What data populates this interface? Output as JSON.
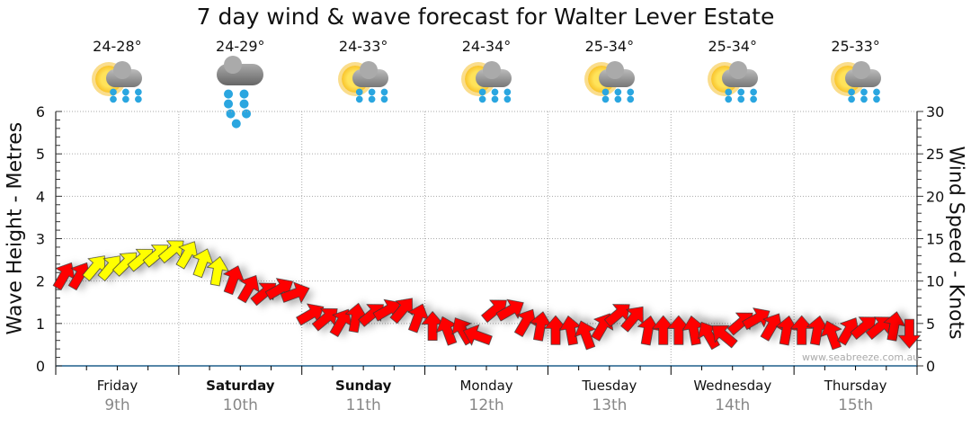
{
  "title": "7 day wind & wave forecast for Walter Lever Estate",
  "watermark": "www.seabreeze.com.au",
  "forecasts": [
    {
      "temp": "24-28°",
      "icon": "sun-cloud-rain-icon"
    },
    {
      "temp": "24-29°",
      "icon": "heavy-rain-cloud-icon"
    },
    {
      "temp": "24-33°",
      "icon": "sun-cloud-rain-icon"
    },
    {
      "temp": "24-34°",
      "icon": "sun-cloud-rain-icon"
    },
    {
      "temp": "25-34°",
      "icon": "sun-cloud-rain-icon"
    },
    {
      "temp": "25-34°",
      "icon": "sun-cloud-rain-icon"
    },
    {
      "temp": "25-33°",
      "icon": "sun-cloud-rain-icon"
    }
  ],
  "days": [
    {
      "name": "Friday",
      "date": "9th",
      "bold": false
    },
    {
      "name": "Saturday",
      "date": "10th",
      "bold": true
    },
    {
      "name": "Sunday",
      "date": "11th",
      "bold": true
    },
    {
      "name": "Monday",
      "date": "12th",
      "bold": false
    },
    {
      "name": "Tuesday",
      "date": "13th",
      "bold": false
    },
    {
      "name": "Wednesday",
      "date": "14th",
      "bold": false
    },
    {
      "name": "Thursday",
      "date": "15th",
      "bold": false
    }
  ],
  "chart_data": {
    "type": "line",
    "title": "7 day wind & wave forecast for Walter Lever Estate",
    "ylabel": "Wave Height - Metres",
    "y2label": "Wind Speed - Knots",
    "ylim": [
      0,
      6
    ],
    "y2lim": [
      0,
      30
    ],
    "yticks": [
      "0",
      "1",
      "2",
      "3",
      "4",
      "5",
      "6"
    ],
    "y2ticks": [
      "0",
      "5",
      "10",
      "15",
      "20",
      "25",
      "30"
    ],
    "grid": true,
    "colors": {
      "strong": "#ff0000",
      "moderate": "#ffff00",
      "axis": "#1f5f8b"
    },
    "x_hours_step": 3,
    "values": [
      2.1,
      2.1,
      2.3,
      2.3,
      2.4,
      2.5,
      2.6,
      2.7,
      2.6,
      2.4,
      2.2,
      2.0,
      1.8,
      1.7,
      1.8,
      1.7,
      1.2,
      1.1,
      1.0,
      1.1,
      1.2,
      1.3,
      1.3,
      1.1,
      0.9,
      0.8,
      0.8,
      0.7,
      1.3,
      1.3,
      1.0,
      0.9,
      0.8,
      0.8,
      0.7,
      0.9,
      1.2,
      1.1,
      0.8,
      0.8,
      0.8,
      0.8,
      0.7,
      0.7,
      1.0,
      1.1,
      0.9,
      0.8,
      0.8,
      0.8,
      0.7,
      0.8,
      0.9,
      0.9,
      0.9,
      0.8
    ],
    "wind_direction_deg": [
      300,
      300,
      310,
      310,
      315,
      320,
      320,
      320,
      300,
      290,
      280,
      290,
      300,
      320,
      330,
      340,
      330,
      320,
      300,
      280,
      320,
      330,
      310,
      290,
      270,
      250,
      240,
      200,
      320,
      330,
      300,
      280,
      270,
      260,
      250,
      300,
      320,
      310,
      280,
      270,
      270,
      260,
      240,
      220,
      320,
      330,
      300,
      280,
      270,
      280,
      250,
      300,
      320,
      320,
      280,
      90
    ],
    "wind_category": [
      "strong",
      "strong",
      "moderate",
      "moderate",
      "moderate",
      "moderate",
      "moderate",
      "moderate",
      "moderate",
      "moderate",
      "moderate",
      "strong",
      "strong",
      "strong",
      "strong",
      "strong",
      "strong",
      "strong",
      "strong",
      "strong",
      "strong",
      "strong",
      "strong",
      "strong",
      "strong",
      "strong",
      "strong",
      "strong",
      "strong",
      "strong",
      "strong",
      "strong",
      "strong",
      "strong",
      "strong",
      "strong",
      "strong",
      "strong",
      "strong",
      "strong",
      "strong",
      "strong",
      "strong",
      "strong",
      "strong",
      "strong",
      "strong",
      "strong",
      "strong",
      "strong",
      "strong",
      "strong",
      "strong",
      "strong",
      "strong",
      "strong"
    ]
  }
}
